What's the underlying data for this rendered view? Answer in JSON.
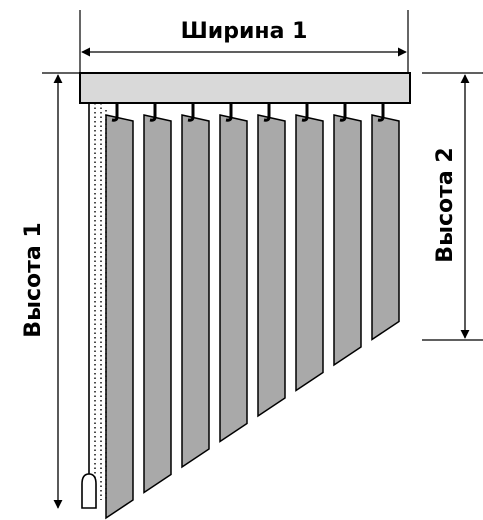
{
  "labels": {
    "width1": "Ширина 1",
    "height1": "Высота 1",
    "height2": "Высота 2"
  },
  "colors": {
    "line": "#000000",
    "slat": "#a9a9a9",
    "rail": "#d9d9d9",
    "background": "#ffffff"
  },
  "slats": {
    "count": 8
  }
}
